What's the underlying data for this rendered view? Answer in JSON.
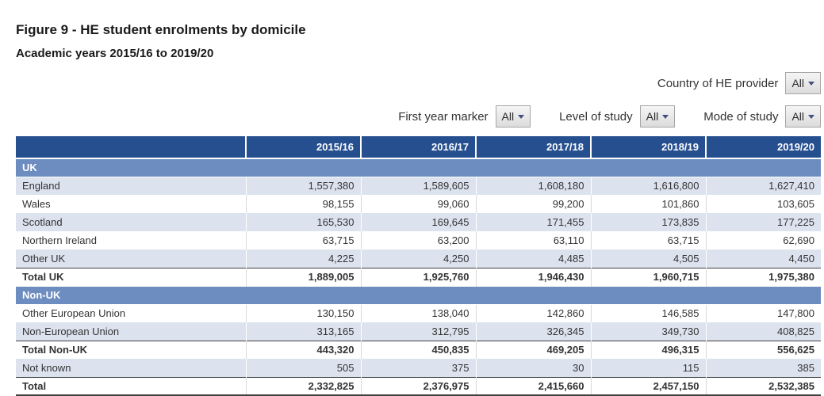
{
  "page": {
    "title": "Figure 9 - HE student enrolments by domicile",
    "subtitle": "Academic years 2015/16 to 2019/20"
  },
  "filters": [
    {
      "label": "Country of HE provider",
      "value": "All"
    },
    {
      "label": "First year marker",
      "value": "All"
    },
    {
      "label": "Level of study",
      "value": "All"
    },
    {
      "label": "Mode of study",
      "value": "All"
    }
  ],
  "table": {
    "columns": [
      "2015/16",
      "2016/17",
      "2017/18",
      "2018/19",
      "2019/20"
    ],
    "rows": [
      {
        "type": "section",
        "label": "UK"
      },
      {
        "type": "data",
        "label": "England",
        "values": [
          "1,557,380",
          "1,589,605",
          "1,608,180",
          "1,616,800",
          "1,627,410"
        ]
      },
      {
        "type": "data",
        "label": "Wales",
        "values": [
          "98,155",
          "99,060",
          "99,200",
          "101,860",
          "103,605"
        ]
      },
      {
        "type": "data",
        "label": "Scotland",
        "values": [
          "165,530",
          "169,645",
          "171,455",
          "173,835",
          "177,225"
        ]
      },
      {
        "type": "data",
        "label": "Northern Ireland",
        "values": [
          "63,715",
          "63,200",
          "63,110",
          "63,715",
          "62,690"
        ]
      },
      {
        "type": "data",
        "label": "Other UK",
        "values": [
          "4,225",
          "4,250",
          "4,485",
          "4,505",
          "4,450"
        ]
      },
      {
        "type": "total",
        "label": "Total UK",
        "values": [
          "1,889,005",
          "1,925,760",
          "1,946,430",
          "1,960,715",
          "1,975,380"
        ]
      },
      {
        "type": "section",
        "label": "Non-UK"
      },
      {
        "type": "data",
        "label": "Other European Union",
        "values": [
          "130,150",
          "138,040",
          "142,860",
          "146,585",
          "147,800"
        ]
      },
      {
        "type": "data",
        "label": "Non-European Union",
        "values": [
          "313,165",
          "312,795",
          "326,345",
          "349,730",
          "408,825"
        ]
      },
      {
        "type": "total",
        "label": "Total Non-UK",
        "values": [
          "443,320",
          "450,835",
          "469,205",
          "496,315",
          "556,625"
        ]
      },
      {
        "type": "data",
        "label": "Not known",
        "values": [
          "505",
          "375",
          "30",
          "115",
          "385"
        ]
      },
      {
        "type": "grand",
        "label": "Total",
        "values": [
          "2,332,825",
          "2,376,975",
          "2,415,660",
          "2,457,150",
          "2,532,385"
        ]
      }
    ]
  },
  "chart_data": {
    "type": "table",
    "title": "Figure 9 - HE student enrolments by domicile",
    "subtitle": "Academic years 2015/16 to 2019/20",
    "categories": [
      "2015/16",
      "2016/17",
      "2017/18",
      "2018/19",
      "2019/20"
    ],
    "series": [
      {
        "name": "England",
        "group": "UK",
        "values": [
          1557380,
          1589605,
          1608180,
          1616800,
          1627410
        ]
      },
      {
        "name": "Wales",
        "group": "UK",
        "values": [
          98155,
          99060,
          99200,
          101860,
          103605
        ]
      },
      {
        "name": "Scotland",
        "group": "UK",
        "values": [
          165530,
          169645,
          171455,
          173835,
          177225
        ]
      },
      {
        "name": "Northern Ireland",
        "group": "UK",
        "values": [
          63715,
          63200,
          63110,
          63715,
          62690
        ]
      },
      {
        "name": "Other UK",
        "group": "UK",
        "values": [
          4225,
          4250,
          4485,
          4505,
          4450
        ]
      },
      {
        "name": "Total UK",
        "group": "UK",
        "values": [
          1889005,
          1925760,
          1946430,
          1960715,
          1975380
        ]
      },
      {
        "name": "Other European Union",
        "group": "Non-UK",
        "values": [
          130150,
          138040,
          142860,
          146585,
          147800
        ]
      },
      {
        "name": "Non-European Union",
        "group": "Non-UK",
        "values": [
          313165,
          312795,
          326345,
          349730,
          408825
        ]
      },
      {
        "name": "Total Non-UK",
        "group": "Non-UK",
        "values": [
          443320,
          450835,
          469205,
          496315,
          556625
        ]
      },
      {
        "name": "Not known",
        "group": "",
        "values": [
          505,
          375,
          30,
          115,
          385
        ]
      },
      {
        "name": "Total",
        "group": "",
        "values": [
          2332825,
          2376975,
          2415660,
          2457150,
          2532385
        ]
      }
    ]
  },
  "colors": {
    "header_background": "#254f8f",
    "section_background": "#6d8cbf",
    "shaded_row_background": "#dce3ef",
    "total_border": "#404040",
    "caret": "#44517e"
  }
}
